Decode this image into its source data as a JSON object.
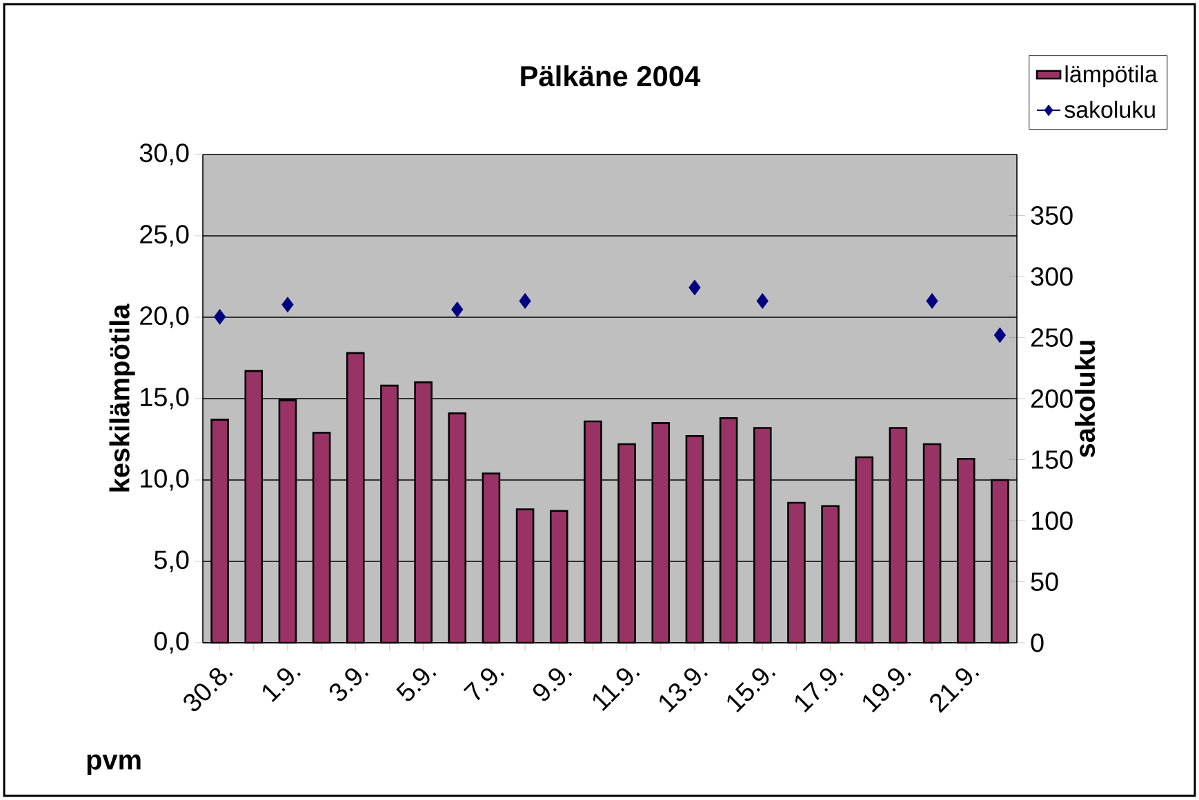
{
  "chart_data": {
    "type": "bar",
    "title": "Pälkäne 2004",
    "xlabel": "pvm",
    "ylabel": "keskilämpötila",
    "y2label": "sakoluku",
    "categories": [
      "30.8.",
      null,
      "1.9.",
      null,
      "3.9.",
      null,
      "5.9.",
      null,
      "7.9.",
      null,
      "9.9.",
      null,
      "11.9.",
      null,
      "13.9.",
      null,
      "15.9.",
      null,
      "17.9.",
      null,
      "19.9.",
      null,
      "21.9.",
      null
    ],
    "series": [
      {
        "name": "lämpötila",
        "color": "#993366",
        "values": [
          13.7,
          16.7,
          14.9,
          12.9,
          17.8,
          15.8,
          16.0,
          14.1,
          10.4,
          8.2,
          8.1,
          13.6,
          12.2,
          13.5,
          12.7,
          13.8,
          13.2,
          8.6,
          8.4,
          11.4,
          13.2,
          12.2,
          11.3,
          10.0
        ]
      },
      {
        "name": "sakoluku",
        "type": "scatter",
        "axis": "y2",
        "color": "#000080",
        "values": [
          267,
          null,
          277,
          null,
          null,
          null,
          null,
          273,
          null,
          280,
          null,
          null,
          null,
          null,
          291,
          null,
          280,
          null,
          null,
          null,
          null,
          280,
          null,
          252
        ]
      }
    ],
    "ylim": [
      0,
      30
    ],
    "yticks": [
      {
        "value": 0,
        "label": "0,0"
      },
      {
        "value": 5,
        "label": "5,0"
      },
      {
        "value": 10,
        "label": "10,0"
      },
      {
        "value": 15,
        "label": "15,0"
      },
      {
        "value": 20,
        "label": "20,0"
      },
      {
        "value": 25,
        "label": "25,0"
      },
      {
        "value": 30,
        "label": "30,0"
      }
    ],
    "y2lim": [
      0,
      400
    ],
    "y2ticks": [
      0,
      50,
      100,
      150,
      200,
      250,
      300,
      350
    ],
    "grid": "y",
    "legend": "top right",
    "marker": "diamond"
  }
}
